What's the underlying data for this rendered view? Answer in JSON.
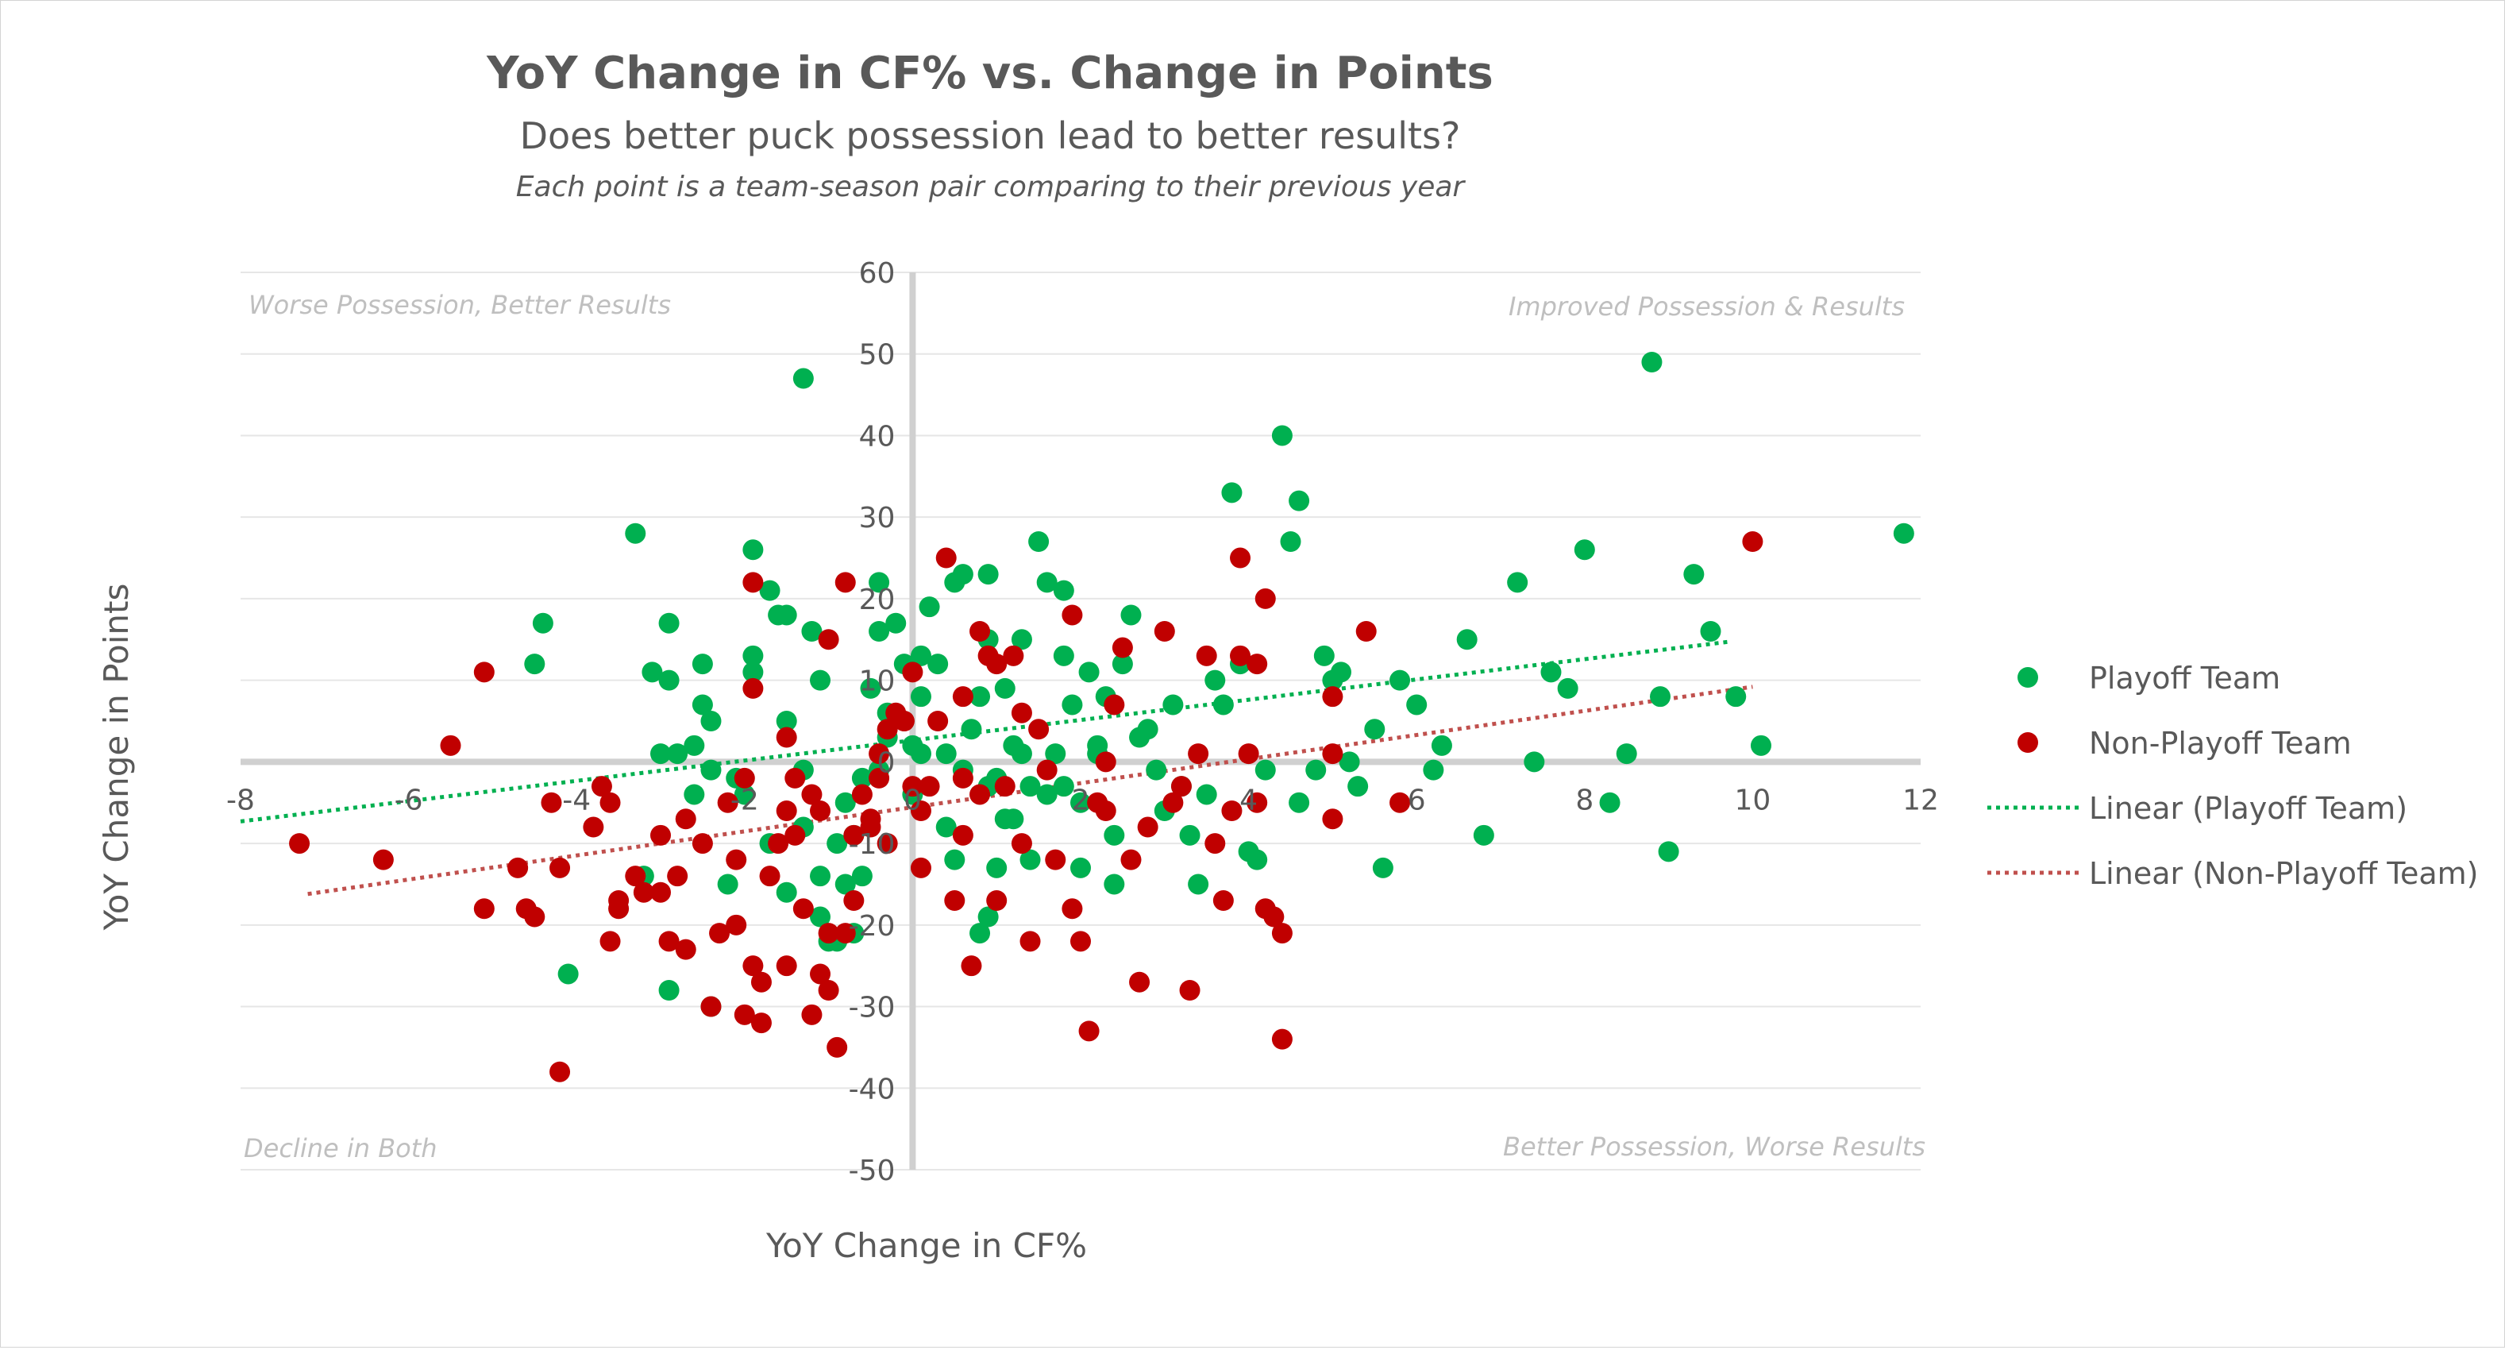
{
  "chart_data": {
    "type": "scatter",
    "title": "YoY Change in CF% vs. Change in Points",
    "subtitle": "Does better puck possession lead to better results?",
    "note": "Each point is a team-season pair comparing to their previous year",
    "xlabel": "YoY Change in CF%",
    "ylabel": "YoY Change in Points",
    "xlim": [
      -8,
      12
    ],
    "ylim": [
      -50,
      60
    ],
    "x_ticks": [
      "-8",
      "-6",
      "-4",
      "-2",
      "0",
      "2",
      "4",
      "6",
      "8",
      "10",
      "12"
    ],
    "y_ticks": [
      "60",
      "50",
      "40",
      "30",
      "20",
      "10",
      "0",
      "-10",
      "-20",
      "-30",
      "-40",
      "-50"
    ],
    "grid": true,
    "legend_position": "right",
    "quadrant_labels": {
      "top_left": "Worse Possession, Better Results",
      "top_right": "Improved Possession & Results",
      "bottom_left": "Decline in Both",
      "bottom_right": "Better Possession, Worse Results"
    },
    "legend": [
      "Playoff Team",
      "Non-Playoff Team",
      "Linear (Playoff Team)",
      "Linear (Non-Playoff Team)"
    ],
    "series": [
      {
        "name": "Playoff Team",
        "color": "#00b050",
        "points": [
          [
            -4.5,
            12
          ],
          [
            -4.4,
            17
          ],
          [
            -3.3,
            28
          ],
          [
            -3.1,
            11
          ],
          [
            -2.9,
            17
          ],
          [
            -2.9,
            10
          ],
          [
            -3.0,
            1
          ],
          [
            -2.8,
            1
          ],
          [
            -2.6,
            2
          ],
          [
            -2.5,
            7
          ],
          [
            -2.5,
            12
          ],
          [
            -2.4,
            5
          ],
          [
            -2.6,
            -4
          ],
          [
            -2.4,
            -1
          ],
          [
            -2.1,
            -2
          ],
          [
            -2.0,
            -4
          ],
          [
            -1.9,
            13
          ],
          [
            -1.9,
            26
          ],
          [
            -1.9,
            11
          ],
          [
            -1.7,
            21
          ],
          [
            -1.6,
            18
          ],
          [
            -1.5,
            18
          ],
          [
            -1.5,
            5
          ],
          [
            -1.3,
            -1
          ],
          [
            -1.3,
            -8
          ],
          [
            -1.2,
            16
          ],
          [
            -1.1,
            10
          ],
          [
            -1.1,
            -14
          ],
          [
            -1.0,
            -22
          ],
          [
            -0.9,
            -10
          ],
          [
            -0.9,
            -22
          ],
          [
            -0.8,
            -15
          ],
          [
            -0.7,
            -9
          ],
          [
            -0.6,
            -14
          ],
          [
            -0.6,
            -2
          ],
          [
            -0.5,
            9
          ],
          [
            -0.4,
            -1
          ],
          [
            -0.4,
            16
          ],
          [
            -0.4,
            22
          ],
          [
            -0.3,
            6
          ],
          [
            -0.2,
            17
          ],
          [
            -0.1,
            12
          ],
          [
            0.0,
            2
          ],
          [
            0.0,
            -4
          ],
          [
            0.1,
            1
          ],
          [
            0.1,
            8
          ],
          [
            0.1,
            13
          ],
          [
            0.2,
            19
          ],
          [
            0.3,
            12
          ],
          [
            0.4,
            1
          ],
          [
            0.4,
            -8
          ],
          [
            0.5,
            -12
          ],
          [
            -0.3,
            3
          ],
          [
            0.5,
            22
          ],
          [
            0.6,
            23
          ],
          [
            0.7,
            4
          ],
          [
            0.8,
            8
          ],
          [
            0.9,
            23
          ],
          [
            0.9,
            15
          ],
          [
            0.9,
            -19
          ],
          [
            1.0,
            -2
          ],
          [
            1.0,
            -13
          ],
          [
            1.1,
            -7
          ],
          [
            1.1,
            9
          ],
          [
            1.2,
            2
          ],
          [
            1.3,
            15
          ],
          [
            1.3,
            1
          ],
          [
            1.4,
            -12
          ],
          [
            1.5,
            27
          ],
          [
            1.6,
            22
          ],
          [
            1.6,
            -4
          ],
          [
            1.7,
            1
          ],
          [
            1.8,
            13
          ],
          [
            1.8,
            21
          ],
          [
            1.9,
            7
          ],
          [
            2.0,
            -13
          ],
          [
            2.0,
            -5
          ],
          [
            2.1,
            11
          ],
          [
            2.2,
            2
          ],
          [
            2.3,
            8
          ],
          [
            2.4,
            -9
          ],
          [
            2.4,
            -15
          ],
          [
            2.5,
            12
          ],
          [
            2.6,
            18
          ],
          [
            2.7,
            3
          ],
          [
            2.8,
            4
          ],
          [
            2.9,
            -1
          ],
          [
            3.0,
            -6
          ],
          [
            3.1,
            7
          ],
          [
            3.2,
            -3
          ],
          [
            3.3,
            -9
          ],
          [
            3.4,
            -15
          ],
          [
            3.5,
            -4
          ],
          [
            3.6,
            10
          ],
          [
            3.7,
            7
          ],
          [
            3.8,
            33
          ],
          [
            3.9,
            12
          ],
          [
            4.0,
            -11
          ],
          [
            4.1,
            -12
          ],
          [
            4.2,
            -1
          ],
          [
            4.4,
            40
          ],
          [
            4.5,
            27
          ],
          [
            4.6,
            32
          ],
          [
            4.6,
            -5
          ],
          [
            4.8,
            -1
          ],
          [
            4.9,
            13
          ],
          [
            5.0,
            10
          ],
          [
            5.1,
            11
          ],
          [
            5.2,
            0
          ],
          [
            5.3,
            -3
          ],
          [
            5.5,
            4
          ],
          [
            5.6,
            -13
          ],
          [
            5.8,
            10
          ],
          [
            6.0,
            7
          ],
          [
            6.2,
            -1
          ],
          [
            6.3,
            2
          ],
          [
            6.6,
            15
          ],
          [
            6.8,
            -9
          ],
          [
            7.2,
            22
          ],
          [
            7.4,
            0
          ],
          [
            7.6,
            11
          ],
          [
            7.8,
            9
          ],
          [
            8.0,
            26
          ],
          [
            8.3,
            -5
          ],
          [
            8.5,
            1
          ],
          [
            8.8,
            49
          ],
          [
            8.9,
            8
          ],
          [
            9.0,
            -11
          ],
          [
            9.3,
            23
          ],
          [
            9.5,
            16
          ],
          [
            9.8,
            8
          ],
          [
            10.1,
            2
          ],
          [
            11.8,
            28
          ],
          [
            -1.3,
            47
          ],
          [
            -1.5,
            -16
          ],
          [
            -2.4,
            -30
          ],
          [
            -2.9,
            -28
          ],
          [
            -3.2,
            -14
          ],
          [
            -1.1,
            -19
          ],
          [
            -0.7,
            -21
          ],
          [
            -1.7,
            -10
          ],
          [
            -2.2,
            -15
          ],
          [
            -4.1,
            -26
          ],
          [
            0.8,
            -21
          ],
          [
            1.2,
            -7
          ],
          [
            1.8,
            -3
          ],
          [
            -0.8,
            -5
          ],
          [
            0.6,
            -1
          ],
          [
            0.9,
            -3
          ],
          [
            1.4,
            -3
          ],
          [
            2.2,
            1
          ]
        ]
      },
      {
        "name": "Non-Playoff Team",
        "color": "#c00000",
        "points": [
          [
            -7.3,
            -10
          ],
          [
            -6.3,
            -12
          ],
          [
            -5.5,
            2
          ],
          [
            -5.1,
            11
          ],
          [
            -5.1,
            -18
          ],
          [
            -4.7,
            -13
          ],
          [
            -4.6,
            -18
          ],
          [
            -4.5,
            -19
          ],
          [
            -4.3,
            -5
          ],
          [
            -4.2,
            -13
          ],
          [
            -4.2,
            -38
          ],
          [
            -3.8,
            -8
          ],
          [
            -3.7,
            -3
          ],
          [
            -3.6,
            -5
          ],
          [
            -3.6,
            -22
          ],
          [
            -3.5,
            -17
          ],
          [
            -3.5,
            -18
          ],
          [
            -3.3,
            -14
          ],
          [
            -3.2,
            -16
          ],
          [
            -3.0,
            -9
          ],
          [
            -3.0,
            -16
          ],
          [
            -2.9,
            -22
          ],
          [
            -2.8,
            -14
          ],
          [
            -2.7,
            -7
          ],
          [
            -2.7,
            -23
          ],
          [
            -2.5,
            -10
          ],
          [
            -2.4,
            -30
          ],
          [
            -2.3,
            -21
          ],
          [
            -2.2,
            -5
          ],
          [
            -2.1,
            -12
          ],
          [
            -2.1,
            -20
          ],
          [
            -2.0,
            -31
          ],
          [
            -2.0,
            -2
          ],
          [
            -1.9,
            9
          ],
          [
            -1.9,
            -25
          ],
          [
            -1.8,
            -32
          ],
          [
            -1.8,
            -27
          ],
          [
            -1.7,
            -14
          ],
          [
            -1.6,
            -10
          ],
          [
            -1.5,
            -6
          ],
          [
            -1.5,
            -25
          ],
          [
            -1.4,
            -9
          ],
          [
            -1.4,
            -2
          ],
          [
            -1.3,
            -18
          ],
          [
            -1.2,
            -4
          ],
          [
            -1.2,
            -31
          ],
          [
            -1.1,
            -6
          ],
          [
            -1.1,
            -26
          ],
          [
            -1.0,
            -28
          ],
          [
            -1.0,
            -21
          ],
          [
            -0.9,
            -35
          ],
          [
            -0.8,
            -21
          ],
          [
            -0.7,
            -9
          ],
          [
            -0.7,
            -17
          ],
          [
            -0.6,
            -4
          ],
          [
            -0.5,
            -8
          ],
          [
            -0.4,
            -2
          ],
          [
            -0.4,
            1
          ],
          [
            -0.3,
            4
          ],
          [
            -0.3,
            -10
          ],
          [
            -0.2,
            6
          ],
          [
            -0.1,
            5
          ],
          [
            0.0,
            11
          ],
          [
            0.1,
            -13
          ],
          [
            0.1,
            -6
          ],
          [
            0.2,
            -3
          ],
          [
            0.3,
            5
          ],
          [
            0.4,
            25
          ],
          [
            0.5,
            -17
          ],
          [
            0.6,
            -9
          ],
          [
            0.7,
            -25
          ],
          [
            0.8,
            16
          ],
          [
            0.8,
            -4
          ],
          [
            0.9,
            13
          ],
          [
            1.0,
            12
          ],
          [
            1.1,
            -3
          ],
          [
            1.2,
            13
          ],
          [
            1.3,
            -10
          ],
          [
            1.4,
            -22
          ],
          [
            1.5,
            4
          ],
          [
            1.6,
            -1
          ],
          [
            1.7,
            -12
          ],
          [
            1.9,
            -18
          ],
          [
            2.0,
            -22
          ],
          [
            2.1,
            -33
          ],
          [
            2.2,
            -5
          ],
          [
            2.3,
            -6
          ],
          [
            2.4,
            7
          ],
          [
            2.5,
            14
          ],
          [
            2.6,
            -12
          ],
          [
            2.7,
            -27
          ],
          [
            2.8,
            -8
          ],
          [
            3.0,
            16
          ],
          [
            3.1,
            -5
          ],
          [
            3.2,
            -3
          ],
          [
            3.3,
            -28
          ],
          [
            3.4,
            1
          ],
          [
            3.6,
            -10
          ],
          [
            3.7,
            -17
          ],
          [
            3.8,
            -6
          ],
          [
            3.9,
            13
          ],
          [
            3.9,
            25
          ],
          [
            4.0,
            1
          ],
          [
            4.1,
            -5
          ],
          [
            4.2,
            20
          ],
          [
            4.3,
            -19
          ],
          [
            4.4,
            -34
          ],
          [
            5.0,
            8
          ],
          [
            5.0,
            -7
          ],
          [
            5.4,
            16
          ],
          [
            5.8,
            -5
          ],
          [
            -1.9,
            22
          ],
          [
            -0.8,
            22
          ],
          [
            -0.1,
            5
          ],
          [
            0.6,
            -2
          ],
          [
            -0.5,
            -7
          ],
          [
            1.9,
            18
          ],
          [
            2.3,
            0
          ],
          [
            3.5,
            13
          ],
          [
            4.2,
            -18
          ],
          [
            4.4,
            -21
          ],
          [
            4.1,
            12
          ],
          [
            5.0,
            1
          ],
          [
            10.0,
            27
          ],
          [
            -1.0,
            15
          ],
          [
            -1.5,
            3
          ],
          [
            0.0,
            -3
          ],
          [
            0.6,
            8
          ],
          [
            1.0,
            -17
          ],
          [
            1.3,
            6
          ]
        ]
      }
    ],
    "trendlines": [
      {
        "name": "Linear (Playoff Team)",
        "color": "#00b050",
        "x": [
          -8,
          9.7
        ],
        "y": [
          -7.3,
          14.7
        ]
      },
      {
        "name": "Linear (Non-Playoff Team)",
        "color": "#c0504d",
        "x": [
          -7.2,
          10.0
        ],
        "y": [
          -16.2,
          9.2
        ]
      }
    ]
  }
}
